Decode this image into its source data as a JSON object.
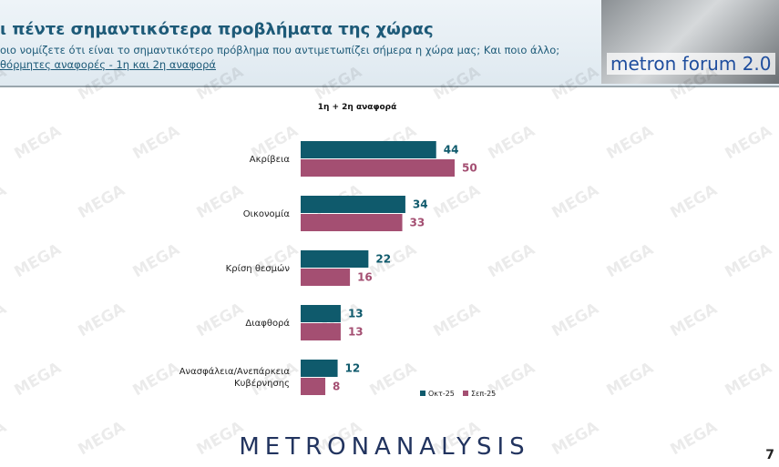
{
  "header": {
    "title": "ι πέντε σημαντικότερα προβλήματα της χώρας",
    "question": "οιο νομίζετε ότι είναι το σημαντικότερο πρόβλημα που αντιμετωπίζει σήμερα η χώρα μας; Και ποιο άλλο;",
    "note": "θόρμητες αναφορές - 1η και 2η αναφορά",
    "logo": "metron forum 2.0"
  },
  "chart_data": {
    "type": "hbar",
    "title": "1η + 2η αναφορά",
    "categories": [
      "Ακρίβεια",
      "Οικονομία",
      "Κρίση θεσμών",
      "Διαφθορά",
      "Ανασφάλεια/Ανεπάρκεια Κυβέρνησης"
    ],
    "series": [
      {
        "name": "Οκτ-25",
        "color": "#0f5a6c",
        "values": [
          44,
          34,
          22,
          13,
          12
        ]
      },
      {
        "name": "Σεπ-25",
        "color": "#a44f72",
        "values": [
          50,
          33,
          16,
          13,
          8
        ]
      }
    ],
    "legend": "bottom-right"
  },
  "footer": {
    "brand": "METRONANALYSIS",
    "page": "7"
  },
  "watermark": "MEGA"
}
